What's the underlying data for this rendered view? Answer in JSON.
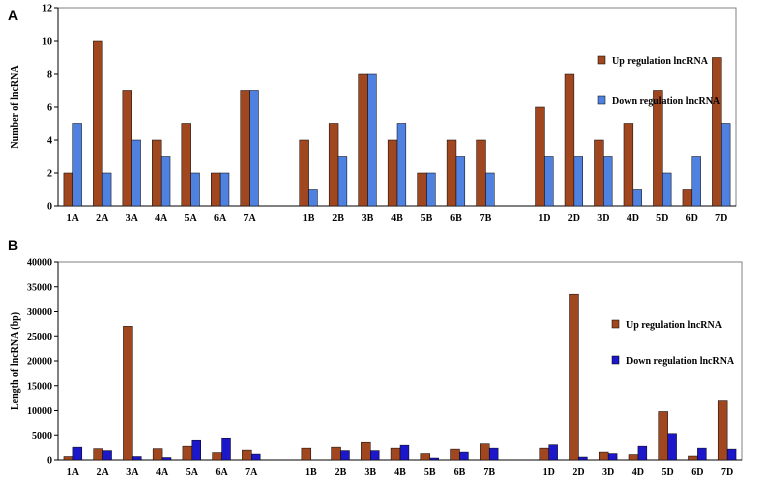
{
  "colors": {
    "up": "#A0471F",
    "down_a": "#4F81E0",
    "down_b": "#1C17C8",
    "axis": "#000000",
    "plot_border": "#808080"
  },
  "chart_data": [
    {
      "panel_label": "A",
      "type": "bar",
      "categories": [
        "1A",
        "2A",
        "3A",
        "4A",
        "5A",
        "6A",
        "7A",
        "",
        "1B",
        "2B",
        "3B",
        "4B",
        "5B",
        "6B",
        "7B",
        "",
        "1D",
        "2D",
        "3D",
        "4D",
        "5D",
        "6D",
        "7D"
      ],
      "series": [
        {
          "name": "Up regulation lncRNA",
          "values": [
            2,
            10,
            7,
            4,
            5,
            2,
            7,
            null,
            4,
            5,
            8,
            4,
            2,
            4,
            4,
            null,
            6,
            8,
            4,
            5,
            7,
            1,
            9
          ]
        },
        {
          "name": "Down regulation lncRNA",
          "values": [
            5,
            2,
            4,
            3,
            2,
            2,
            7,
            null,
            1,
            3,
            8,
            5,
            2,
            3,
            2,
            null,
            3,
            3,
            3,
            1,
            2,
            3,
            5
          ]
        }
      ],
      "ylabel": "Number of lncRNA",
      "ylim": [
        0,
        12
      ],
      "yticks": [
        "0",
        "2",
        "4",
        "6",
        "8",
        "10",
        "12"
      ],
      "legend": "right",
      "grid": false
    },
    {
      "panel_label": "B",
      "type": "bar",
      "categories": [
        "1A",
        "2A",
        "3A",
        "4A",
        "5A",
        "6A",
        "7A",
        "",
        "1B",
        "2B",
        "3B",
        "4B",
        "5B",
        "6B",
        "7B",
        "",
        "1D",
        "2D",
        "3D",
        "4D",
        "5D",
        "6D",
        "7D"
      ],
      "series": [
        {
          "name": "Up regulation lncRNA",
          "values": [
            700,
            2300,
            27000,
            2300,
            2800,
            1500,
            2000,
            null,
            2400,
            2600,
            3600,
            2400,
            1300,
            2200,
            3300,
            null,
            2400,
            33500,
            1600,
            1100,
            9800,
            800,
            12000
          ]
        },
        {
          "name": "Down regulation lncRNA",
          "values": [
            2600,
            1900,
            700,
            500,
            4000,
            4400,
            1200,
            null,
            0,
            1900,
            1900,
            3000,
            400,
            1600,
            2400,
            null,
            3100,
            600,
            1300,
            2800,
            5300,
            2400,
            2200
          ]
        }
      ],
      "ylabel": "Length of lncRNA (bp)",
      "ylim": [
        0,
        40000
      ],
      "yticks": [
        "0",
        "5000",
        "10000",
        "15000",
        "20000",
        "25000",
        "30000",
        "35000",
        "40000"
      ],
      "legend": "right",
      "grid": false
    }
  ]
}
